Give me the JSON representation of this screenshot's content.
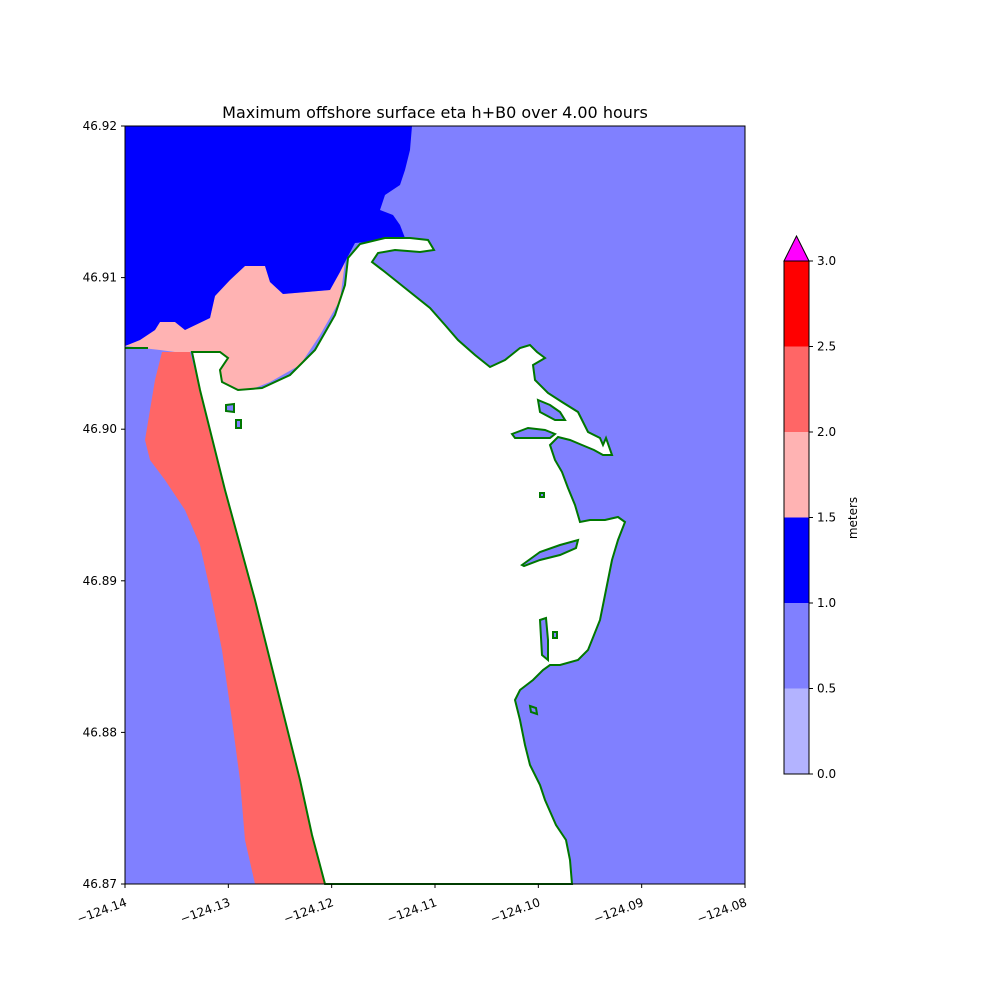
{
  "chart_data": {
    "type": "heatmap",
    "title": "Maximum offshore surface eta h+B0 over 4.00 hours",
    "xlabel": "",
    "ylabel": "",
    "xlim": [
      -124.14,
      -124.08
    ],
    "ylim": [
      46.87,
      46.92
    ],
    "x_ticks": [
      "−124.14",
      "−124.13",
      "−124.12",
      "−124.11",
      "−124.10",
      "−124.09",
      "−124.08"
    ],
    "x_tick_values": [
      -124.14,
      -124.13,
      -124.12,
      -124.11,
      -124.1,
      -124.09,
      -124.08
    ],
    "y_ticks": [
      "46.87",
      "46.88",
      "46.89",
      "46.90",
      "46.91",
      "46.92"
    ],
    "y_tick_values": [
      46.87,
      46.88,
      46.89,
      46.9,
      46.91,
      46.92
    ],
    "colorbar": {
      "label": "meters",
      "ticks": [
        "0.0",
        "0.5",
        "1.0",
        "1.5",
        "2.0",
        "2.5",
        "3.0"
      ],
      "levels": [
        0.0,
        0.5,
        1.0,
        1.5,
        2.0,
        2.5,
        3.0
      ],
      "colors": [
        "#b3b3ff",
        "#8080ff",
        "#0000ff",
        "#ffb3b3",
        "#ff6666",
        "#ff0000"
      ],
      "extend_color": "#ff00ff"
    },
    "regions": [
      {
        "level": "0.5–1.0",
        "color": "#8080ff",
        "area": "east offshore water and bay"
      },
      {
        "level": "1.0–1.5",
        "color": "#0000ff",
        "area": "northwest offshore"
      },
      {
        "level": "1.5–2.0",
        "color": "#ffb3b3",
        "area": "west offshore"
      },
      {
        "level": "2.0–2.5",
        "color": "#ff6666",
        "area": "nearshore west coast"
      }
    ],
    "shoreline_color": "#007700",
    "grid": false
  }
}
